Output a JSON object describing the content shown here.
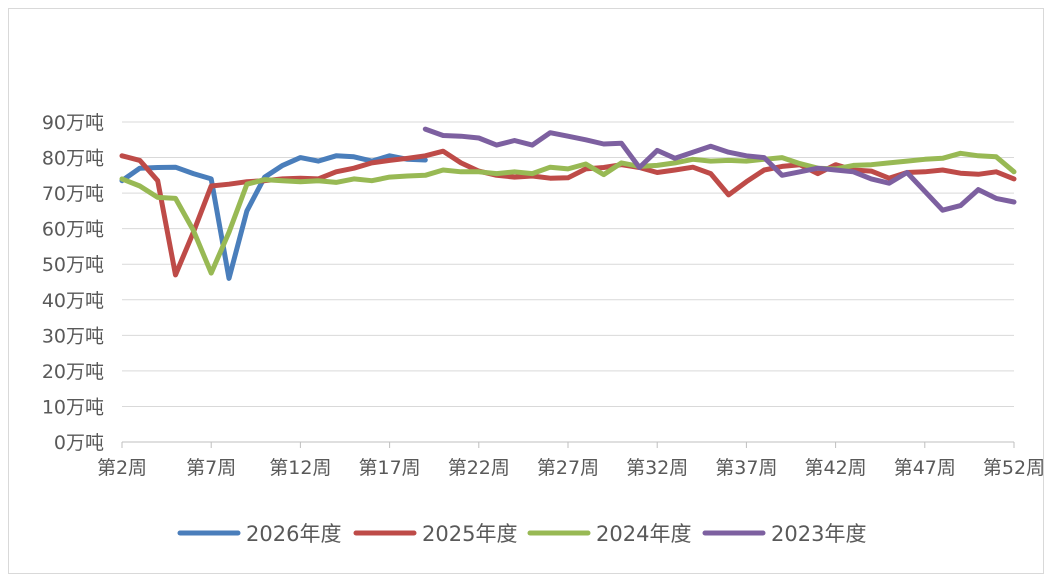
{
  "chart_data": {
    "type": "line",
    "title": "",
    "xlabel": "",
    "ylabel": "",
    "ylim": [
      0,
      90
    ],
    "y_ticks": [
      "0万吨",
      "10万吨",
      "20万吨",
      "30万吨",
      "40万吨",
      "50万吨",
      "60万吨",
      "70万吨",
      "80万吨",
      "90万吨"
    ],
    "x_tick_labels": [
      "第2周",
      "第7周",
      "第12周",
      "第17周",
      "第22周",
      "第27周",
      "第32周",
      "第37周",
      "第42周",
      "第47周",
      "第52周"
    ],
    "x_tick_weeks": [
      2,
      7,
      12,
      17,
      22,
      27,
      32,
      37,
      42,
      47,
      52
    ],
    "grid": true,
    "legend_position": "bottom",
    "series": [
      {
        "name": "2026年度",
        "color": "#4a7ebb",
        "x": [
          2,
          3,
          4,
          5,
          6,
          7,
          8,
          9,
          10,
          11,
          12,
          13,
          14,
          15,
          16,
          17,
          18,
          19
        ],
        "values": [
          73.5,
          77,
          77.2,
          77.3,
          75.5,
          74,
          46,
          65,
          74.5,
          77.8,
          80,
          79,
          80.5,
          80.2,
          79,
          80.5,
          79.5,
          79.3
        ]
      },
      {
        "name": "2025年度",
        "color": "#be4b48",
        "x": [
          2,
          3,
          4,
          5,
          6,
          7,
          8,
          9,
          10,
          11,
          12,
          13,
          14,
          15,
          16,
          17,
          18,
          19,
          20,
          21,
          22,
          23,
          24,
          25,
          26,
          27,
          28,
          29,
          30,
          31,
          32,
          33,
          34,
          35,
          36,
          37,
          38,
          39,
          40,
          41,
          42,
          43,
          44,
          45,
          46,
          47,
          48,
          49,
          50,
          51,
          52
        ],
        "values": [
          80.5,
          79.2,
          73.5,
          47,
          59,
          72,
          72.5,
          73.2,
          73.5,
          74,
          74.2,
          74,
          76,
          77,
          78.5,
          79.2,
          79.8,
          80.5,
          81.8,
          78.5,
          76.2,
          75,
          74.5,
          74.8,
          74.2,
          74.3,
          76.8,
          77.2,
          78,
          77.2,
          75.8,
          76.5,
          77.3,
          75.5,
          69.5,
          73.2,
          76.5,
          77.5,
          78,
          75.5,
          78,
          76.5,
          76.2,
          74.2,
          75.8,
          76,
          76.5,
          75.6,
          75.3,
          76,
          74
        ]
      },
      {
        "name": "2024年度",
        "color": "#98b954",
        "x": [
          2,
          3,
          4,
          5,
          6,
          7,
          8,
          9,
          10,
          11,
          12,
          13,
          14,
          15,
          16,
          17,
          18,
          19,
          20,
          21,
          22,
          23,
          24,
          25,
          26,
          27,
          28,
          29,
          30,
          31,
          32,
          33,
          34,
          35,
          36,
          37,
          38,
          39,
          40,
          41,
          42,
          43,
          44,
          45,
          46,
          47,
          48,
          49,
          50,
          51,
          52
        ],
        "values": [
          74,
          72,
          68.8,
          68.5,
          59.5,
          47.5,
          59,
          72.5,
          73.8,
          73.5,
          73.2,
          73.5,
          73,
          74,
          73.5,
          74.5,
          74.8,
          75,
          76.5,
          76,
          76,
          75.5,
          76,
          75.5,
          77.3,
          76.8,
          78.2,
          75.2,
          78.5,
          77.5,
          77.8,
          78.5,
          79.5,
          79,
          79.2,
          79,
          79.5,
          80,
          78.3,
          77,
          76.8,
          77.8,
          78,
          78.5,
          79,
          79.5,
          79.8,
          81.2,
          80.5,
          80.2,
          76
        ]
      },
      {
        "name": "2023年度",
        "color": "#7d60a0",
        "x": [
          19,
          20,
          21,
          22,
          23,
          24,
          25,
          26,
          27,
          28,
          29,
          30,
          31,
          32,
          33,
          34,
          35,
          36,
          37,
          38,
          39,
          40,
          41,
          42,
          43,
          44,
          45,
          46,
          47,
          48,
          49,
          50,
          51,
          52
        ],
        "values": [
          88,
          86.2,
          86,
          85.5,
          83.5,
          84.8,
          83.5,
          87,
          86,
          85,
          83.8,
          84,
          77.2,
          82,
          79.8,
          81.5,
          83.2,
          81.5,
          80.5,
          80,
          75,
          76,
          77,
          76.5,
          76,
          74,
          72.8,
          75.8,
          70.5,
          65.2,
          66.5,
          71,
          68.5,
          67.5
        ]
      }
    ]
  }
}
